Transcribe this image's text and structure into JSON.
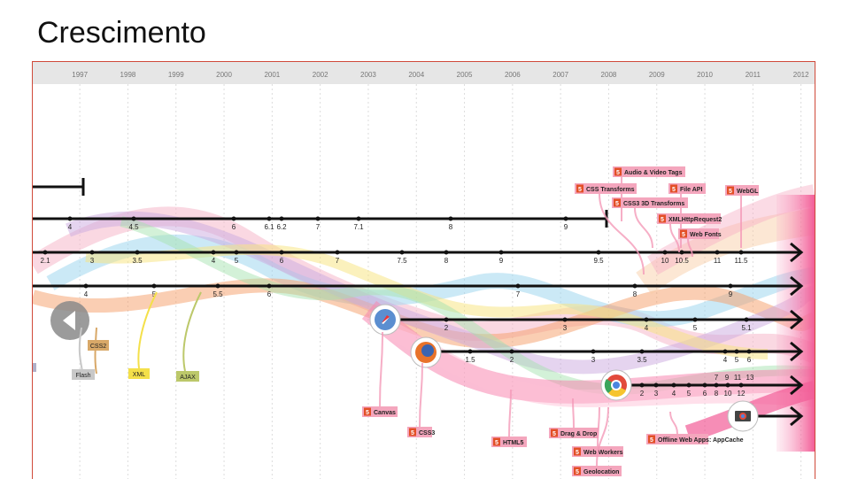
{
  "title": "Crescimento",
  "years": [
    "1997",
    "1998",
    "1999",
    "2000",
    "2001",
    "2002",
    "2003",
    "2004",
    "2005",
    "2006",
    "2007",
    "2008",
    "2009",
    "2010",
    "2011",
    "2012"
  ],
  "versions": {
    "line1": [
      "4",
      "4.5",
      "6",
      "6.1",
      "6.2",
      "7",
      "7.1",
      "8",
      "9"
    ],
    "line2": [
      "2.1",
      "3",
      "3.5",
      "4",
      "5",
      "6",
      "7",
      "7.5",
      "8",
      "9",
      "9.5",
      "10",
      "10.5",
      "11",
      "11.5"
    ],
    "line3": [
      "4",
      "5",
      "5.5",
      "6",
      "7",
      "8",
      "9"
    ],
    "safari": [
      "2",
      "3",
      "4",
      "5",
      "5.1"
    ],
    "firefox": [
      "1.5",
      "2",
      "3",
      "3.5",
      "4",
      "5",
      "6"
    ],
    "chrome_top": [
      "7",
      "9",
      "11",
      "13"
    ],
    "chrome_bottom": [
      "2",
      "3",
      "4",
      "5",
      "6",
      "8",
      "10",
      "12"
    ]
  },
  "browser_icons": {
    "safari": "safari-icon",
    "firefox": "firefox-icon",
    "chrome": "chrome-icon",
    "chrome_os": "chrome-os-icon",
    "back": "previous-arrow-icon"
  },
  "tech_labels": {
    "css2": "CSS2",
    "flash": "Flash",
    "xml": "XML",
    "ajax": "AJAX"
  },
  "html5_labels": {
    "audio_video": "Audio & Video Tags",
    "css_transforms": "CSS Transforms",
    "file_api": "File API",
    "webgl": "WebGL",
    "css3_3d": "CSS3 3D Transforms",
    "xhr2": "XMLHttpRequest2",
    "web_fonts": "Web Fonts",
    "canvas": "Canvas",
    "css3": "CSS3",
    "html5": "HTML5",
    "drag_drop": "Drag & Drop",
    "web_workers": "Web Workers",
    "geolocation": "Geolocation",
    "offline": "Offline Web Apps: AppCache"
  },
  "colors": {
    "frame_border": "#d04a3a",
    "html5_badge": "#e34f26",
    "html5_label_bg": "#f4a6bd",
    "css2": "#d8a868",
    "flash": "#c8c8c8",
    "xml": "#f4e04a",
    "ajax": "#bcc86a",
    "timeline": "#111111",
    "magenta": "#f14c8c"
  }
}
